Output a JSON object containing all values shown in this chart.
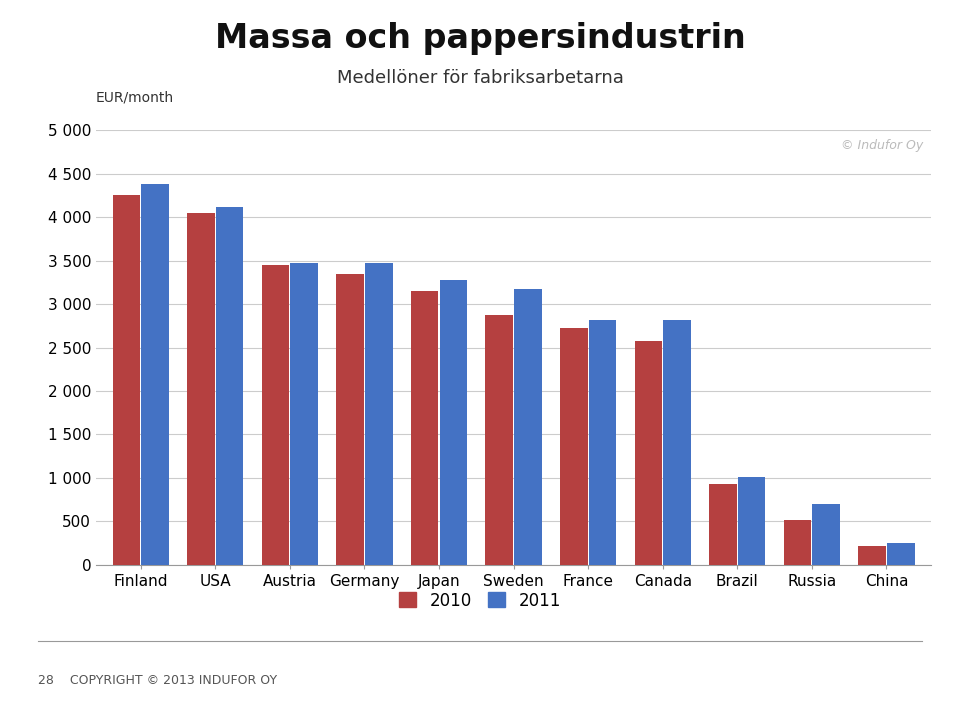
{
  "title": "Massa och pappersindustrin",
  "subtitle": "Medellöner för fabriksarbetarna",
  "ylabel": "EUR/month",
  "watermark": "© Indufor Oy",
  "categories": [
    "Finland",
    "USA",
    "Austria",
    "Germany",
    "Japan",
    "Sweden",
    "France",
    "Canada",
    "Brazil",
    "Russia",
    "China"
  ],
  "values_2010": [
    4250,
    4050,
    3450,
    3350,
    3150,
    2870,
    2730,
    2580,
    930,
    510,
    220
  ],
  "values_2011": [
    4380,
    4120,
    3470,
    3470,
    3280,
    3170,
    2820,
    2820,
    1010,
    700,
    250
  ],
  "color_2010": "#B54040",
  "color_2011": "#4472C4",
  "ylim": [
    0,
    5000
  ],
  "yticks": [
    0,
    500,
    1000,
    1500,
    2000,
    2500,
    3000,
    3500,
    4000,
    4500,
    5000
  ],
  "ytick_labels": [
    "0",
    "500",
    "1 000",
    "1 500",
    "2 000",
    "2 500",
    "3 000",
    "3 500",
    "4 000",
    "4 500",
    "5 000"
  ],
  "legend_2010": "2010",
  "legend_2011": "2011",
  "background_color": "#FFFFFF",
  "title_fontsize": 24,
  "subtitle_fontsize": 13,
  "axis_label_fontsize": 10,
  "tick_fontsize": 11,
  "legend_fontsize": 12,
  "footer_text": "28    COPYRIGHT © 2013 INDUFOR OY"
}
